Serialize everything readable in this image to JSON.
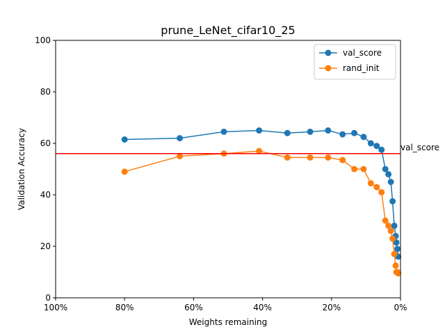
{
  "chart_data": {
    "type": "line",
    "title": "prune_LeNet_cifar10_25",
    "xlabel": "Weights remaining",
    "ylabel": "Validation Accuracy",
    "xlim": [
      100,
      0
    ],
    "ylim": [
      0,
      100
    ],
    "x_ticks": [
      100,
      80,
      60,
      40,
      20,
      0
    ],
    "x_tick_labels": [
      "100%",
      "80%",
      "60%",
      "40%",
      "20%",
      "0%"
    ],
    "y_ticks": [
      0,
      20,
      40,
      60,
      80,
      100
    ],
    "y_tick_labels": [
      "0",
      "20",
      "40",
      "60",
      "80",
      "100"
    ],
    "grid": false,
    "legend_position": "top-right",
    "series": [
      {
        "name": "val_score",
        "color": "#1f77b4",
        "x": [
          80,
          64,
          51.2,
          41,
          32.8,
          26.2,
          21,
          16.8,
          13.4,
          10.7,
          8.6,
          6.9,
          5.5,
          4.4,
          3.5,
          2.8,
          2.3,
          1.8,
          1.4,
          1.2,
          0.9,
          0.7
        ],
        "y": [
          61.5,
          62,
          64.5,
          65,
          64,
          64.5,
          65,
          63.5,
          64,
          62.5,
          60,
          59,
          57.5,
          50,
          48,
          45,
          37.5,
          28,
          24,
          21.5,
          19,
          16
        ]
      },
      {
        "name": "rand_init",
        "color": "#ff7f0e",
        "x": [
          80,
          64,
          51.2,
          41,
          32.8,
          26.2,
          21,
          16.8,
          13.4,
          10.7,
          8.6,
          6.9,
          5.5,
          4.4,
          3.5,
          2.8,
          2.3,
          1.8,
          1.4,
          1.2,
          0.9,
          0.7
        ],
        "y": [
          49,
          55,
          56,
          57,
          54.5,
          54.5,
          54.5,
          53.5,
          50,
          50,
          44.5,
          43,
          41,
          30,
          28,
          26,
          23,
          17,
          12.5,
          10,
          10,
          9.5
        ]
      }
    ],
    "hline": {
      "y": 56,
      "color": "#ff0000",
      "label": "val_score"
    }
  }
}
